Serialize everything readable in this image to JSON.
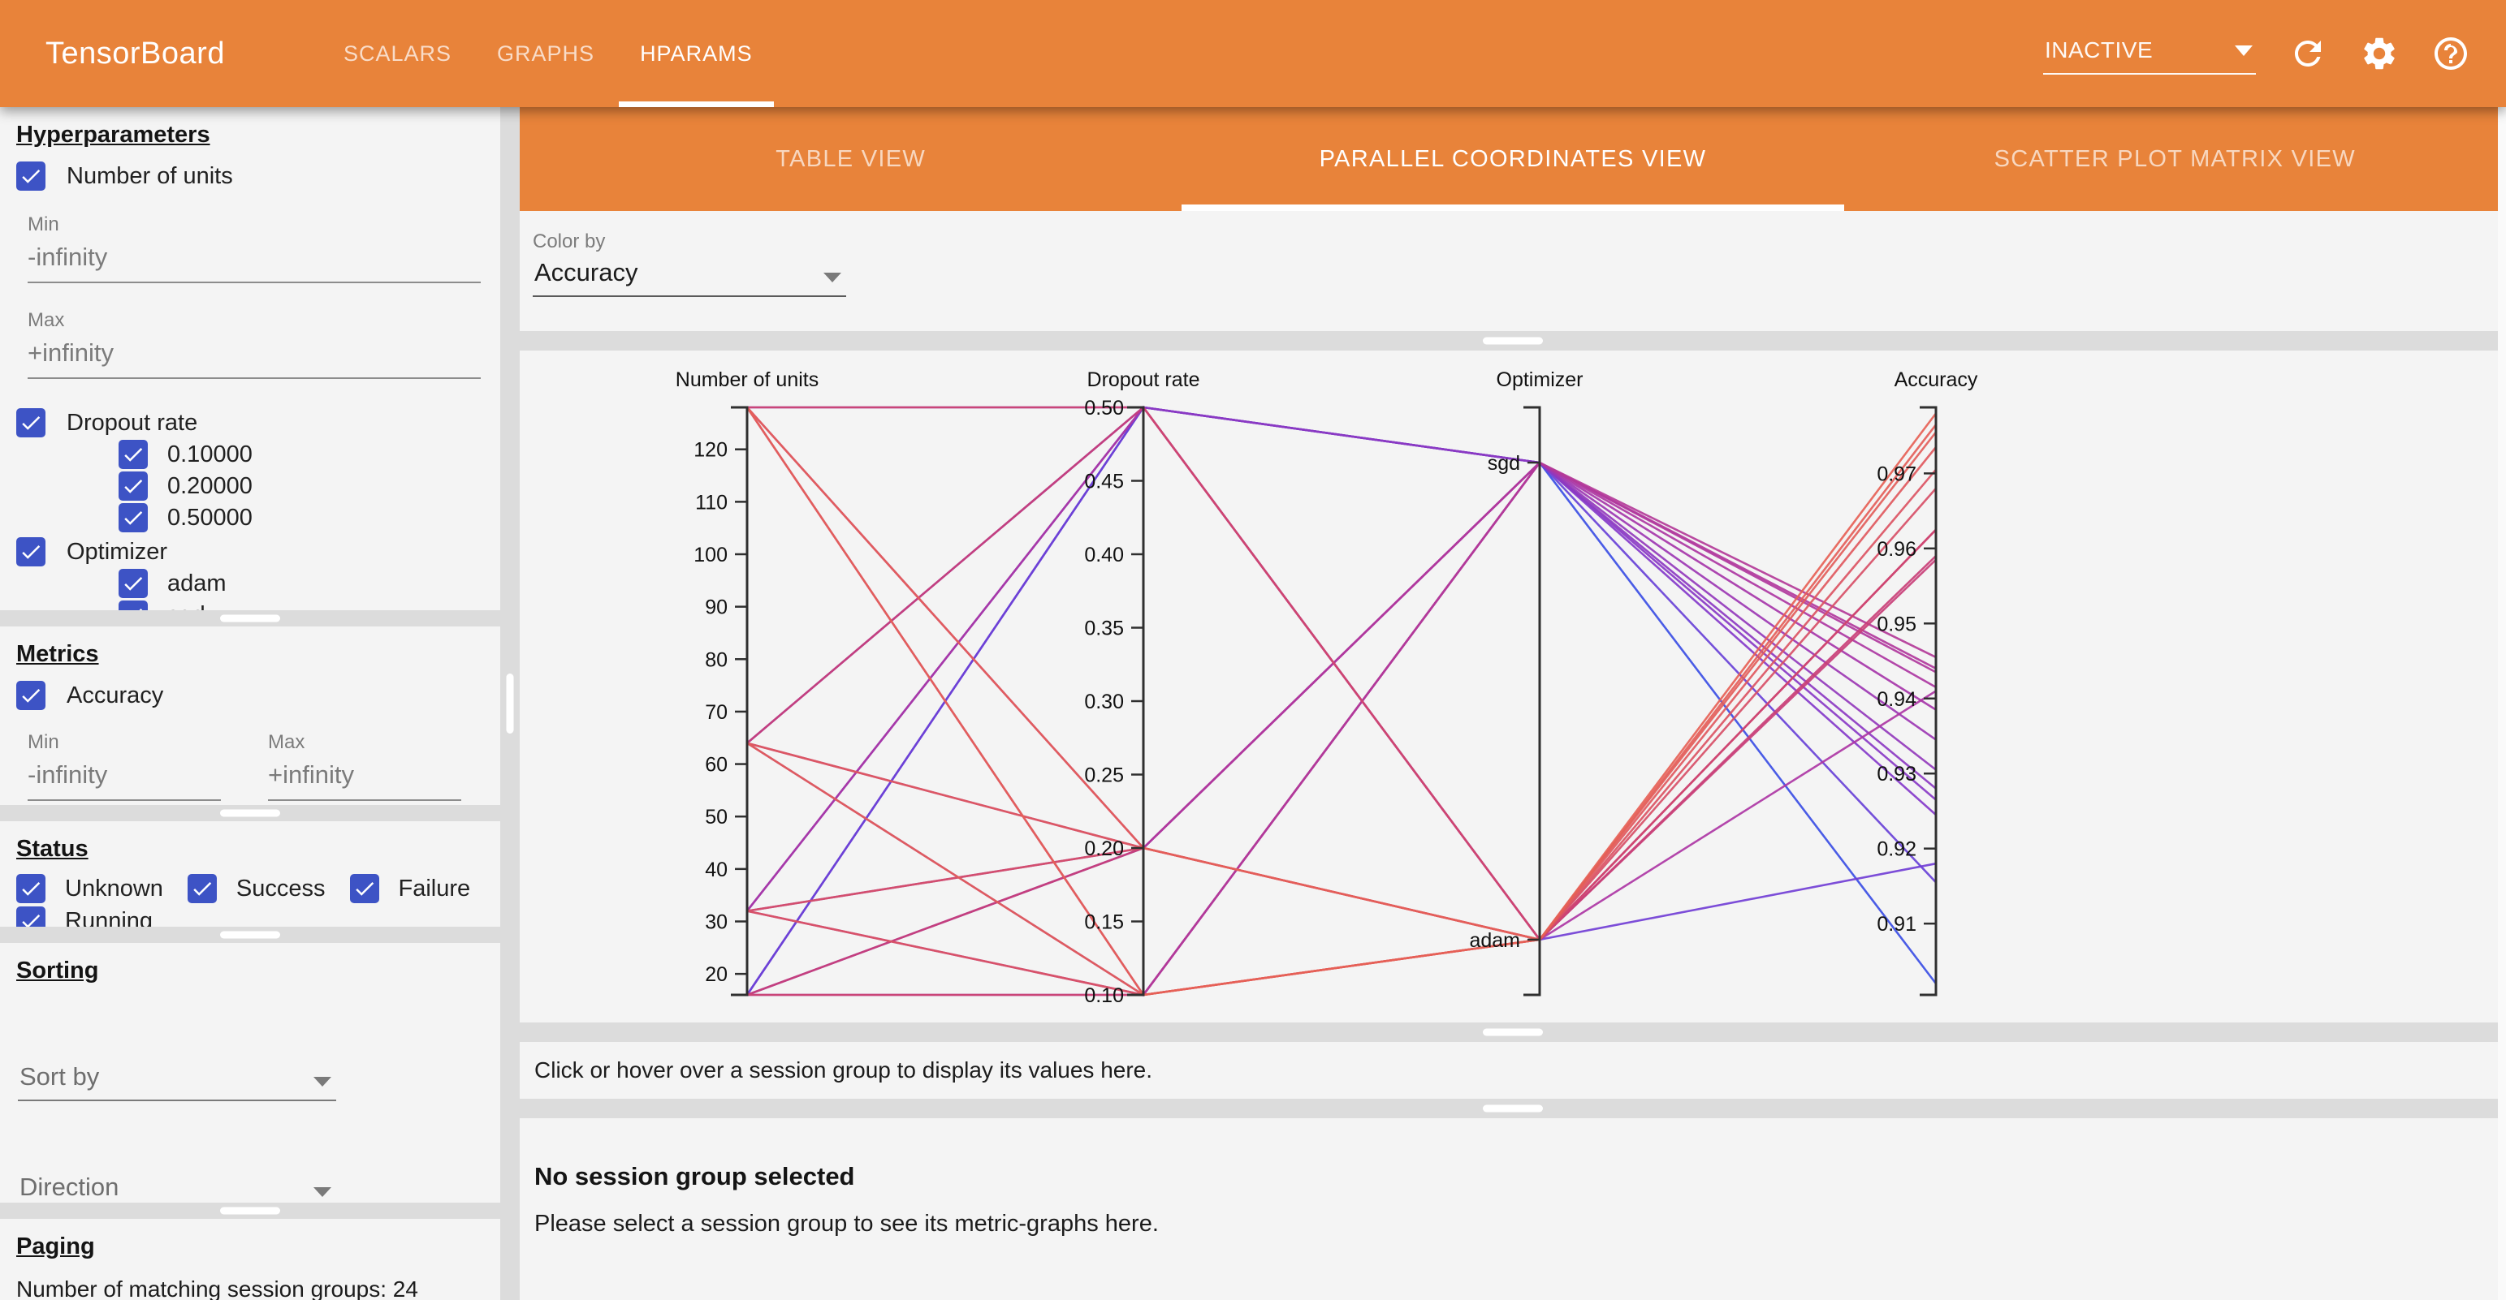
{
  "app": {
    "title": "TensorBoard",
    "nav": [
      "SCALARS",
      "GRAPHS",
      "HPARAMS"
    ],
    "active_nav": 2,
    "run_status": "INACTIVE",
    "icons": [
      "refresh-icon",
      "settings-icon",
      "help-icon"
    ]
  },
  "colors": {
    "accent_orange": "#e8833a",
    "checkbox_blue": "#3d53c5",
    "panel_bg": "#f4f4f4",
    "gutter_bg": "#dcdcdc"
  },
  "sidebar": {
    "hyperparameters": {
      "heading": "Hyperparameters",
      "number_of_units": {
        "label": "Number of units",
        "checked": true,
        "min_label": "Min",
        "min_value": "-infinity",
        "max_label": "Max",
        "max_value": "+infinity"
      },
      "dropout_rate": {
        "label": "Dropout rate",
        "checked": true,
        "values": [
          "0.10000",
          "0.20000",
          "0.50000"
        ]
      },
      "optimizer": {
        "label": "Optimizer",
        "checked": true,
        "values": [
          "adam",
          "sgd"
        ]
      }
    },
    "metrics": {
      "heading": "Metrics",
      "accuracy_label": "Accuracy",
      "checked": true,
      "min_label": "Min",
      "min_value": "-infinity",
      "max_label": "Max",
      "max_value": "+infinity"
    },
    "status": {
      "heading": "Status",
      "options": [
        "Unknown",
        "Success",
        "Failure",
        "Running"
      ]
    },
    "sorting": {
      "heading": "Sorting",
      "sort_by_placeholder": "Sort by",
      "direction_placeholder": "Direction"
    },
    "paging": {
      "heading": "Paging",
      "summary": "Number of matching session groups: 24"
    }
  },
  "main": {
    "view_tabs": [
      "TABLE VIEW",
      "PARALLEL COORDINATES VIEW",
      "SCATTER PLOT MATRIX VIEW"
    ],
    "active_view_tab": 1,
    "color_by": {
      "label": "Color by",
      "value": "Accuracy"
    },
    "hover_hint": "Click or hover over a session group to display its values here.",
    "session_empty": {
      "title": "No session group selected",
      "subtitle": "Please select a session group to see its metric-graphs here."
    }
  },
  "chart_data": {
    "type": "parallel-coordinates",
    "title": "",
    "color_by": "Accuracy",
    "colormap": [
      "#3b4ee4",
      "#7b3bd2",
      "#aa36a6",
      "#c93f77",
      "#e66156"
    ],
    "session_keys": [
      "units",
      "dropout",
      "optimizer",
      "accuracy"
    ],
    "axes": [
      {
        "name": "Number of units",
        "type": "linear",
        "range": [
          16,
          128
        ],
        "tick_values": [
          20,
          30,
          40,
          50,
          60,
          70,
          80,
          90,
          100,
          110,
          120
        ],
        "tick_labels": [
          "20",
          "30",
          "40",
          "50",
          "60",
          "70",
          "80",
          "90",
          "100",
          "110",
          "120"
        ]
      },
      {
        "name": "Dropout rate",
        "type": "linear",
        "range": [
          0.1,
          0.5
        ],
        "tick_values": [
          0.1,
          0.15,
          0.2,
          0.25,
          0.3,
          0.35,
          0.4,
          0.45,
          0.5
        ],
        "tick_labels": [
          "0.10",
          "0.15",
          "0.20",
          "0.25",
          "0.30",
          "0.35",
          "0.40",
          "0.45",
          "0.50"
        ]
      },
      {
        "name": "Optimizer",
        "type": "categorical",
        "categories": [
          "sgd",
          "adam"
        ]
      },
      {
        "name": "Accuracy",
        "type": "linear",
        "range": [
          0.9005,
          0.9788
        ],
        "tick_values": [
          0.91,
          0.92,
          0.93,
          0.94,
          0.95,
          0.96,
          0.97
        ],
        "tick_labels": [
          "0.91",
          "0.92",
          "0.93",
          "0.94",
          "0.95",
          "0.96",
          "0.97"
        ]
      }
    ],
    "sessions": [
      {
        "units": 16,
        "dropout": 0.5,
        "optimizer": "sgd",
        "accuracy": 0.902
      },
      {
        "units": 32,
        "dropout": 0.5,
        "optimizer": "sgd",
        "accuracy": 0.9155
      },
      {
        "units": 16,
        "dropout": 0.5,
        "optimizer": "adam",
        "accuracy": 0.918
      },
      {
        "units": 64,
        "dropout": 0.5,
        "optimizer": "sgd",
        "accuracy": 0.9245
      },
      {
        "units": 16,
        "dropout": 0.2,
        "optimizer": "sgd",
        "accuracy": 0.9265
      },
      {
        "units": 128,
        "dropout": 0.5,
        "optimizer": "sgd",
        "accuracy": 0.928
      },
      {
        "units": 16,
        "dropout": 0.1,
        "optimizer": "sgd",
        "accuracy": 0.9305
      },
      {
        "units": 32,
        "dropout": 0.2,
        "optimizer": "sgd",
        "accuracy": 0.9345
      },
      {
        "units": 32,
        "dropout": 0.1,
        "optimizer": "sgd",
        "accuracy": 0.9385
      },
      {
        "units": 32,
        "dropout": 0.5,
        "optimizer": "adam",
        "accuracy": 0.941
      },
      {
        "units": 64,
        "dropout": 0.2,
        "optimizer": "sgd",
        "accuracy": 0.9415
      },
      {
        "units": 64,
        "dropout": 0.1,
        "optimizer": "sgd",
        "accuracy": 0.9435
      },
      {
        "units": 128,
        "dropout": 0.2,
        "optimizer": "sgd",
        "accuracy": 0.944
      },
      {
        "units": 128,
        "dropout": 0.1,
        "optimizer": "sgd",
        "accuracy": 0.9455
      },
      {
        "units": 64,
        "dropout": 0.5,
        "optimizer": "adam",
        "accuracy": 0.9585
      },
      {
        "units": 16,
        "dropout": 0.2,
        "optimizer": "adam",
        "accuracy": 0.959
      },
      {
        "units": 16,
        "dropout": 0.1,
        "optimizer": "adam",
        "accuracy": 0.9625
      },
      {
        "units": 128,
        "dropout": 0.5,
        "optimizer": "adam",
        "accuracy": 0.9625
      },
      {
        "units": 32,
        "dropout": 0.2,
        "optimizer": "adam",
        "accuracy": 0.968
      },
      {
        "units": 32,
        "dropout": 0.1,
        "optimizer": "adam",
        "accuracy": 0.9705
      },
      {
        "units": 64,
        "dropout": 0.2,
        "optimizer": "adam",
        "accuracy": 0.9735
      },
      {
        "units": 64,
        "dropout": 0.1,
        "optimizer": "adam",
        "accuracy": 0.9755
      },
      {
        "units": 128,
        "dropout": 0.2,
        "optimizer": "adam",
        "accuracy": 0.9765
      },
      {
        "units": 128,
        "dropout": 0.1,
        "optimizer": "adam",
        "accuracy": 0.978
      }
    ]
  }
}
